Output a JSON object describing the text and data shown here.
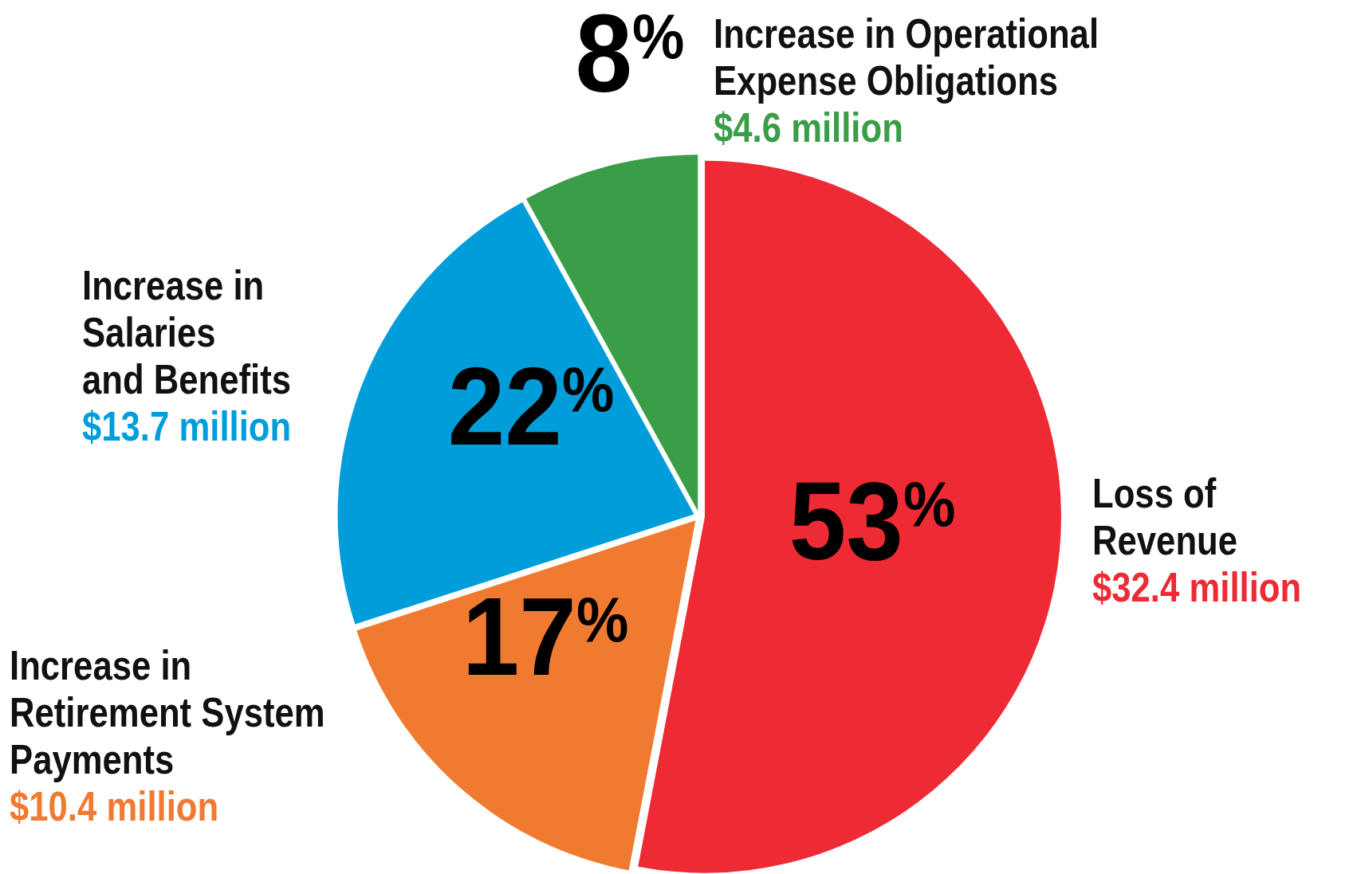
{
  "chart_data": {
    "type": "pie",
    "categories": [
      "Loss of\nRevenue",
      "Increase in\nRetirement System\nPayments",
      "Increase in\nSalaries\nand Benefits",
      "Increase in Operational\nExpense Obligations"
    ],
    "values": [
      53,
      17,
      22,
      8
    ],
    "colors": [
      "#ee2a35",
      "#f07a30",
      "#009ddb",
      "#3a9d48"
    ],
    "value_labels": [
      "53%",
      "17%",
      "22%",
      "8%"
    ],
    "annotations": [
      "$32.4 million",
      "$10.4 million",
      "$13.7 million",
      "$4.6 million"
    ]
  }
}
